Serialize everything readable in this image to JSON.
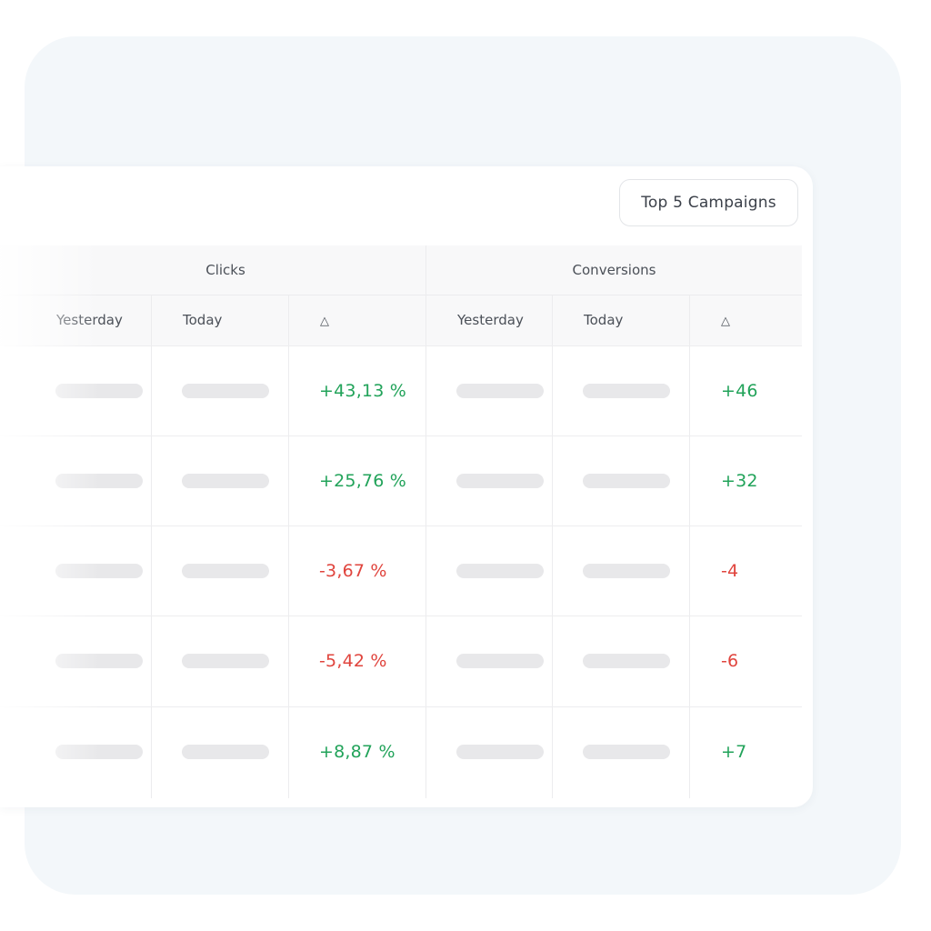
{
  "toolbar": {
    "campaigns_button": "Top 5 Campaigns"
  },
  "groups": {
    "clicks": "Clicks",
    "conversions": "Conversions"
  },
  "columns": {
    "clicks_yesterday": "Yesterday",
    "clicks_today": "Today",
    "clicks_delta": "△",
    "conv_yesterday": "Yesterday",
    "conv_today": "Today",
    "conv_delta": "△"
  },
  "rows": [
    {
      "clicks_delta": "+43,13 %",
      "conv_delta": "+46",
      "trend": "up"
    },
    {
      "clicks_delta": "+25,76 %",
      "conv_delta": "+32",
      "trend": "up"
    },
    {
      "clicks_delta": "-3,67 %",
      "conv_delta": "-4",
      "trend": "down"
    },
    {
      "clicks_delta": "-5,42 %",
      "conv_delta": "-6",
      "trend": "down"
    },
    {
      "clicks_delta": "+8,87 %",
      "conv_delta": "+7",
      "trend": "up"
    }
  ],
  "colors": {
    "positive": "#22a35a",
    "negative": "#e0443d",
    "backdrop": "#f3f7fa"
  }
}
